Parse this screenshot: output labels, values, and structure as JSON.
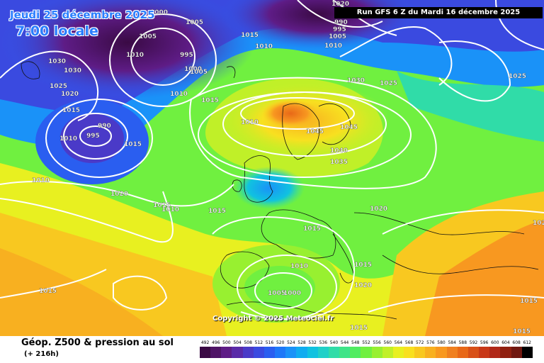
{
  "header": {
    "valid_date": "Jeudi 25 décembre 2025",
    "valid_time": "7:00 locale",
    "run": "Run GFS 6 Z du Mardi 16 décembre 2025"
  },
  "footer": {
    "parameter": "Géop. Z500 & pression au sol",
    "lead": "(+ 216h)",
    "copyright": "Copyright © 2025 Meteociel.fr"
  },
  "scale": {
    "labels": [
      "492",
      "496",
      "500",
      "504",
      "508",
      "512",
      "516",
      "520",
      "524",
      "528",
      "532",
      "536",
      "540",
      "544",
      "548",
      "552",
      "556",
      "560",
      "564",
      "568",
      "572",
      "576",
      "580",
      "584",
      "588",
      "592",
      "596",
      "600",
      "604",
      "608",
      "612"
    ],
    "colors": [
      "#3a0a44",
      "#4f1466",
      "#5e1c86",
      "#5a2aa8",
      "#4a3ac8",
      "#3a4ae0",
      "#2a5ef0",
      "#1e78f8",
      "#1a92f8",
      "#10acf0",
      "#10c2e0",
      "#20d0c8",
      "#30dca8",
      "#3ee488",
      "#50ec60",
      "#70f040",
      "#98f030",
      "#c0f028",
      "#e8f020",
      "#f8e020",
      "#f8c820",
      "#f8b020",
      "#f89820",
      "#f08020",
      "#e86818",
      "#d85018",
      "#c83818",
      "#b02818",
      "#902010",
      "#701810",
      "#000000"
    ]
  },
  "pressure_labels": [
    "1000",
    "1005",
    "1005",
    "1010",
    "995",
    "1000",
    "1005",
    "1015",
    "1010",
    "1030",
    "1030",
    "1025",
    "1020",
    "1015",
    "990",
    "995",
    "1010",
    "1015",
    "1010",
    "1010",
    "1015",
    "1010",
    "1030",
    "1025",
    "1020",
    "1025",
    "1045",
    "1045",
    "1040",
    "1035",
    "1020",
    "1015",
    "1010",
    "1015",
    "1020",
    "1015",
    "1015",
    "1010",
    "1005",
    "1000",
    "1015",
    "1020",
    "1015",
    "1015",
    "1015",
    "1020",
    "990",
    "995",
    "1005",
    "1010"
  ]
}
